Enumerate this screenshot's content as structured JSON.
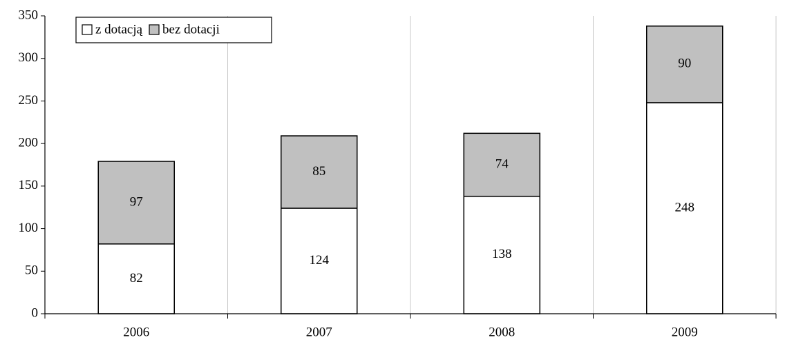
{
  "chart_data": {
    "type": "stacked_bar",
    "categories": [
      "2006",
      "2007",
      "2008",
      "2009"
    ],
    "series": [
      {
        "name": "z dotacją",
        "color": "#ffffff",
        "values": [
          82,
          124,
          138,
          248
        ]
      },
      {
        "name": "bez dotacji",
        "color": "#c0c0c0",
        "values": [
          97,
          85,
          74,
          90
        ]
      }
    ],
    "ylim": [
      0,
      350
    ],
    "yticks": [
      0,
      50,
      100,
      150,
      200,
      250,
      300,
      350
    ],
    "grid": "x",
    "legend": "top-left",
    "data_labels": true
  }
}
